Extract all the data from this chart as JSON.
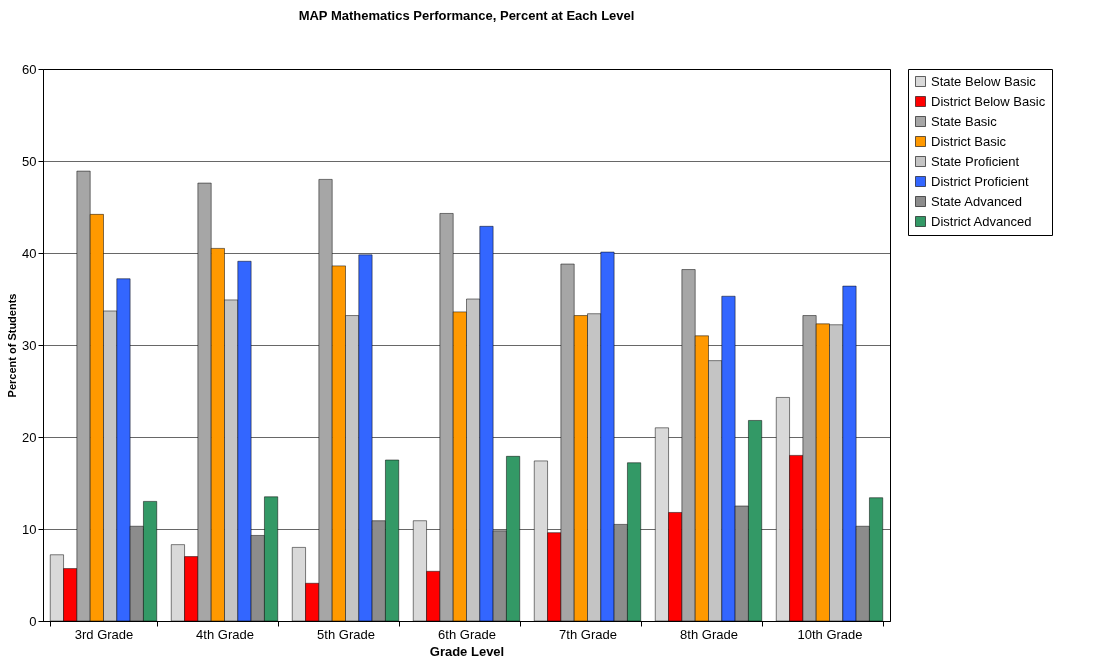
{
  "chart_data": {
    "type": "bar",
    "title": "MAP Mathematics Performance, Percent at Each Level",
    "xlabel": "Grade Level",
    "ylabel": "Percent of Students",
    "categories": [
      "3rd Grade",
      "4th Grade",
      "5th Grade",
      "6th Grade",
      "7th Grade",
      "8th Grade",
      "10th Grade"
    ],
    "series": [
      {
        "name": "State Below Basic",
        "color": "#d9d9d9",
        "values": [
          7.2,
          8.3,
          8.0,
          10.9,
          17.4,
          21.0,
          24.3
        ]
      },
      {
        "name": "District Below Basic",
        "color": "#ff0000",
        "values": [
          5.7,
          7.0,
          4.1,
          5.4,
          9.6,
          11.8,
          18.0
        ]
      },
      {
        "name": "State Basic",
        "color": "#a6a6a6",
        "values": [
          48.9,
          47.6,
          48.0,
          44.3,
          38.8,
          38.2,
          33.2
        ]
      },
      {
        "name": "District Basic",
        "color": "#ff9900",
        "values": [
          44.2,
          40.5,
          38.6,
          33.6,
          33.2,
          31.0,
          32.3
        ]
      },
      {
        "name": "State Proficient",
        "color": "#c4c4c4",
        "values": [
          33.7,
          34.9,
          33.2,
          35.0,
          33.4,
          28.3,
          32.2
        ]
      },
      {
        "name": "District Proficient",
        "color": "#3366ff",
        "values": [
          37.2,
          39.1,
          39.8,
          42.9,
          40.1,
          35.3,
          36.4
        ]
      },
      {
        "name": "State Advanced",
        "color": "#8c8c8c",
        "values": [
          10.3,
          9.3,
          10.9,
          9.8,
          10.5,
          12.5,
          10.3
        ]
      },
      {
        "name": "District Advanced",
        "color": "#339966",
        "values": [
          13.0,
          13.5,
          17.5,
          17.9,
          17.2,
          21.8,
          13.4
        ]
      }
    ],
    "ylim": [
      0,
      60
    ],
    "yticks": [
      0,
      10,
      20,
      30,
      40,
      50,
      60
    ],
    "grid": "y",
    "legend": "top right"
  }
}
